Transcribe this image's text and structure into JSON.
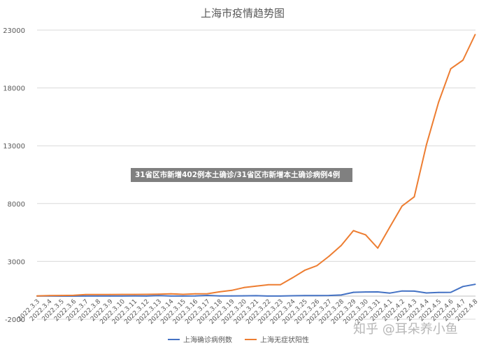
{
  "chart_data": {
    "type": "line",
    "title": "上海市疫情趋势图",
    "ylim": [
      -2000,
      23000
    ],
    "yticks": [
      "23000",
      "18000",
      "13000",
      "8000",
      "3000",
      "-2000"
    ],
    "ytick_values": [
      23000,
      18000,
      13000,
      8000,
      3000,
      -2000
    ],
    "legend_position": "bottom",
    "grid": "horizontal",
    "categories": [
      "2022.3.3",
      "2022.3.4",
      "2022.3.5",
      "2022.3.6",
      "2022.3.7",
      "2022.3.8",
      "2022.3.9",
      "2022.3.10",
      "2022.3.11",
      "2022.3.12",
      "2022.3.13",
      "2022.3.14",
      "2022.3.15",
      "2022.3.16",
      "2022.3.17",
      "2022.3.18",
      "2022.3.19",
      "2022.3.20",
      "2022.3.21",
      "2022.3.22",
      "2022.3.23",
      "2022.3.24",
      "2022.3.25",
      "2022.3.26",
      "2022.3.27",
      "2022.3.28",
      "2022.3.29",
      "2022.3.30",
      "2022.3.31",
      "2022.4.1",
      "2022.4.2",
      "2022.4.3",
      "2022.4.4",
      "2022.4.5",
      "2022.4.6",
      "2022.4.7",
      "2022.4.8"
    ],
    "series": [
      {
        "name": "上海确诊病例数",
        "color": "#4472c4",
        "values": [
          2,
          3,
          0,
          0,
          1,
          3,
          1,
          5,
          11,
          1,
          41,
          5,
          5,
          8,
          57,
          8,
          17,
          24,
          31,
          4,
          4,
          29,
          38,
          45,
          50,
          96,
          326,
          355,
          358,
          260,
          438,
          425,
          268,
          311,
          322,
          824,
          1015
        ]
      },
      {
        "name": "上海无症状阳性",
        "color": "#ed7d31",
        "values": [
          14,
          45,
          55,
          62,
          130,
          128,
          138,
          141,
          140,
          150,
          169,
          199,
          150,
          197,
          203,
          366,
          492,
          734,
          865,
          979,
          983,
          1582,
          2231,
          2631,
          3450,
          4381,
          5656,
          5298,
          4144,
          5982,
          7788,
          8581,
          13086,
          16766,
          19660,
          20398,
          22609
        ]
      }
    ]
  },
  "overlay_text": "31省区市新增402例本土确诊/31省区市新增本土确诊病例4例",
  "watermark": "知乎 @耳朵养小鱼"
}
